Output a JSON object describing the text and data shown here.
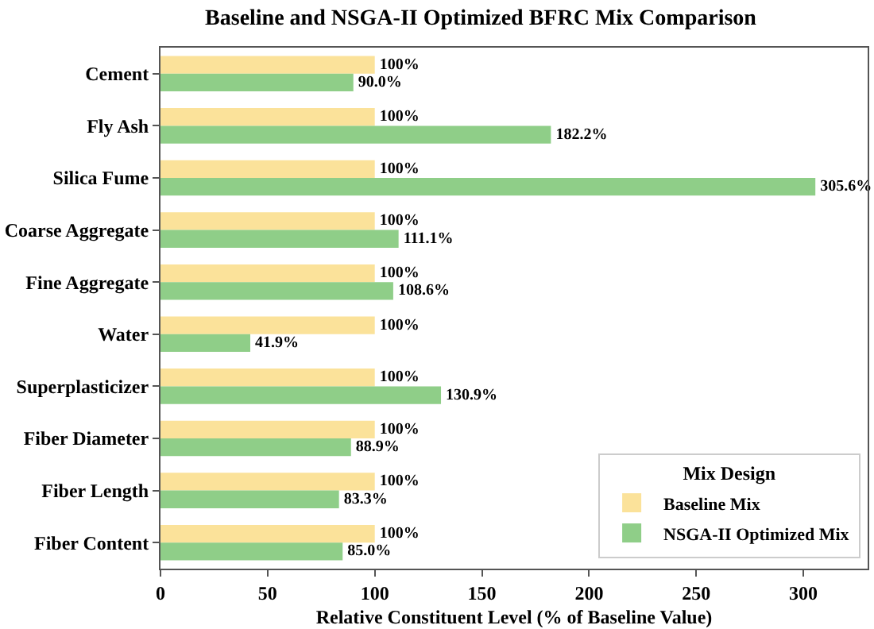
{
  "chart_data": {
    "type": "bar",
    "orientation": "horizontal",
    "title": "Baseline and NSGA-II Optimized BFRC Mix Comparison",
    "xlabel": "Relative Constituent Level (% of Baseline Value)",
    "legend_title": "Mix Design",
    "legend": "bottom right",
    "categories": [
      "Cement",
      "Fly Ash",
      "Silica Fume",
      "Coarse Aggregate",
      "Fine Aggregate",
      "Water",
      "Superplasticizer",
      "Fiber Diameter",
      "Fiber Length",
      "Fiber Content"
    ],
    "xlim": [
      0,
      330
    ],
    "xticks": [
      0,
      50,
      100,
      150,
      200,
      250,
      300
    ],
    "series": [
      {
        "name": "Baseline Mix",
        "color": "#fbe29a",
        "values": [
          100,
          100,
          100,
          100,
          100,
          100,
          100,
          100,
          100,
          100
        ],
        "value_labels": [
          "100%",
          "100%",
          "100%",
          "100%",
          "100%",
          "100%",
          "100%",
          "100%",
          "100%",
          "100%"
        ]
      },
      {
        "name": "NSGA-II Optimized Mix",
        "color": "#8fce88",
        "values": [
          90.0,
          182.2,
          305.6,
          111.1,
          108.6,
          41.9,
          130.9,
          88.9,
          83.3,
          85.0
        ],
        "value_labels": [
          "90.0%",
          "182.2%",
          "305.6%",
          "111.1%",
          "108.6%",
          "41.9%",
          "130.9%",
          "88.9%",
          "83.3%",
          "85.0%"
        ]
      }
    ]
  }
}
